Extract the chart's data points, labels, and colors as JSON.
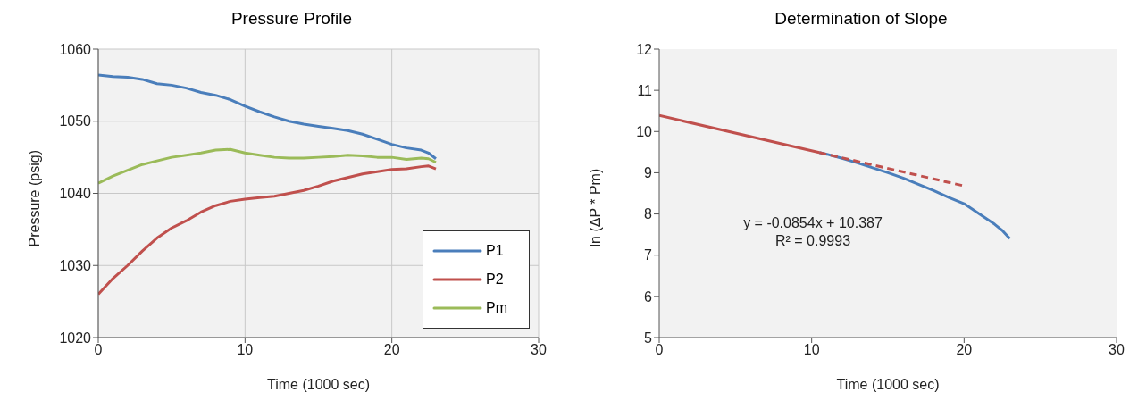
{
  "chart_data": [
    {
      "type": "line",
      "title": "Pressure Profile",
      "xlabel": "Time (1000 sec)",
      "ylabel": "Pressure (psig)",
      "xlim": [
        0,
        30
      ],
      "xticks": [
        0,
        10,
        20,
        30
      ],
      "ylim": [
        1020,
        1060
      ],
      "yticks": [
        1020,
        1030,
        1040,
        1050,
        1060
      ],
      "grid": true,
      "legend": "bottom right",
      "marker": "none",
      "line_style": "solid",
      "x": [
        0,
        1,
        2,
        3,
        4,
        5,
        6,
        7,
        8,
        9,
        10,
        11,
        12,
        13,
        14,
        15,
        16,
        17,
        18,
        19,
        20,
        21,
        22,
        22.5,
        23
      ],
      "series": [
        {
          "name": "P1",
          "color": "#4a7ebb",
          "values": [
            1056.4,
            1056.2,
            1056.1,
            1055.8,
            1055.2,
            1055,
            1054.6,
            1054,
            1053.6,
            1053,
            1052.1,
            1051.3,
            1050.6,
            1050,
            1049.6,
            1049.3,
            1049,
            1048.7,
            1048.2,
            1047.5,
            1046.8,
            1046.3,
            1046,
            1045.6,
            1044.8
          ]
        },
        {
          "name": "P2",
          "color": "#c0504d",
          "values": [
            1026,
            1028.2,
            1030,
            1032,
            1033.8,
            1035.2,
            1036.2,
            1037.4,
            1038.3,
            1038.9,
            1039.2,
            1039.4,
            1039.6,
            1040,
            1040.4,
            1041,
            1041.7,
            1042.2,
            1042.7,
            1043,
            1043.3,
            1043.4,
            1043.7,
            1043.8,
            1043.4
          ]
        },
        {
          "name": "Pm",
          "color": "#9bbb59",
          "values": [
            1041.4,
            1042.4,
            1043.2,
            1044,
            1044.5,
            1045,
            1045.3,
            1045.6,
            1046,
            1046.1,
            1045.6,
            1045.3,
            1045,
            1044.9,
            1044.9,
            1045,
            1045.1,
            1045.3,
            1045.2,
            1045,
            1045,
            1044.7,
            1044.9,
            1044.8,
            1044.3
          ]
        }
      ]
    },
    {
      "type": "line",
      "title": "Determination of Slope",
      "xlabel": "Time (1000 sec)",
      "ylabel": "ln (ΔP * Pm)",
      "xlim": [
        0,
        30
      ],
      "xticks": [
        0,
        10,
        20,
        30
      ],
      "ylim": [
        5,
        12
      ],
      "yticks": [
        5,
        6,
        7,
        8,
        9,
        10,
        11,
        12
      ],
      "grid": false,
      "legend": false,
      "marker": "none",
      "annotations": [
        "y = -0.0854x + 10.387",
        "R² = 0.9993"
      ],
      "series": [
        {
          "color": "#4a7ebb",
          "line_style": "solid",
          "x": [
            10.5,
            11,
            12,
            13,
            14,
            15,
            16,
            17,
            18,
            19,
            20,
            21,
            22,
            22.5,
            23
          ],
          "values": [
            9.49,
            9.45,
            9.35,
            9.24,
            9.12,
            9,
            8.87,
            8.72,
            8.57,
            8.4,
            8.25,
            8.0,
            7.75,
            7.6,
            7.4
          ]
        },
        {
          "color": "#c0504d",
          "line_style": "solid",
          "x": [
            0,
            10.5
          ],
          "values": [
            10.39,
            9.49
          ]
        },
        {
          "color": "#c0504d",
          "line_style": "dashed",
          "x": [
            10.5,
            20
          ],
          "values": [
            9.49,
            8.68
          ]
        }
      ]
    }
  ]
}
